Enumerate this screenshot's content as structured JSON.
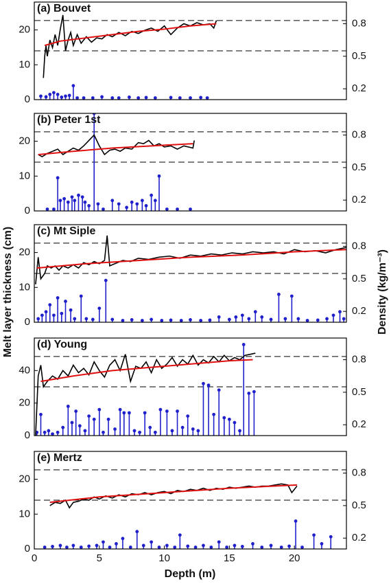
{
  "labels": {
    "y": "Melt layer thickness (cm)",
    "y2": "Density (kg/m⁻³)",
    "x": "Depth (m)"
  },
  "chart_data": [
    {
      "type": "stem-line",
      "title": "(a) Bouvet",
      "xlim": [
        0,
        24
      ],
      "ylim": [
        0,
        28
      ],
      "yticks": [
        0,
        10,
        20
      ],
      "y2lim": [
        0.1,
        1.0
      ],
      "y2ticks": [
        0.2,
        0.5,
        0.8
      ],
      "hlines": [
        0.83,
        0.55
      ],
      "hline_axis": "y2",
      "series": [
        {
          "kind": "stem",
          "color": "#1f1fcc",
          "x": [
            0.5,
            0.9,
            1.2,
            1.5,
            1.8,
            2.1,
            2.4,
            2.7,
            3.0,
            3.3,
            3.8,
            4.5,
            5.2,
            6.0,
            6.5,
            7.3,
            8.0,
            8.6,
            9.3,
            10.5,
            11.2,
            12.0,
            12.8,
            13.3
          ],
          "values": [
            1,
            0.8,
            1.5,
            2,
            1.5,
            0.7,
            1,
            1.2,
            4,
            0.5,
            0.5,
            0.5,
            0.8,
            0.5,
            0.5,
            0.7,
            0.5,
            0.6,
            0.5,
            0.6,
            0.5,
            0.5,
            0.6,
            0.5
          ]
        },
        {
          "kind": "line",
          "axis": "y2",
          "color": "#000000",
          "x": [
            0.7,
            0.8,
            0.9,
            1.0,
            1.2,
            1.4,
            1.6,
            1.8,
            2.0,
            2.2,
            2.4,
            2.6,
            2.8,
            3.0,
            3.3,
            3.6,
            4.0,
            4.4,
            4.8,
            5.2,
            5.6,
            6.0,
            6.5,
            7.0,
            7.5,
            8.0,
            8.5,
            9.0,
            9.5,
            10.0,
            10.5,
            11.0,
            11.5,
            12.0,
            12.5,
            13.0,
            13.5,
            13.8,
            14.0
          ],
          "values": [
            0.3,
            0.5,
            0.6,
            0.5,
            0.65,
            0.58,
            0.7,
            0.6,
            0.75,
            0.88,
            0.55,
            0.65,
            0.72,
            0.6,
            0.7,
            0.62,
            0.68,
            0.63,
            0.67,
            0.66,
            0.7,
            0.68,
            0.72,
            0.69,
            0.73,
            0.71,
            0.74,
            0.76,
            0.73,
            0.78,
            0.7,
            0.76,
            0.8,
            0.78,
            0.81,
            0.79,
            0.8,
            0.76,
            0.83
          ]
        },
        {
          "kind": "line",
          "axis": "y2",
          "color": "#e01010",
          "x": [
            0.8,
            2,
            4,
            6,
            8,
            10,
            12,
            14
          ],
          "values": [
            0.6,
            0.64,
            0.67,
            0.7,
            0.73,
            0.75,
            0.78,
            0.8
          ]
        }
      ]
    },
    {
      "type": "stem-line",
      "title": "(b) Peter 1st",
      "xlim": [
        0,
        24
      ],
      "ylim": [
        0,
        28
      ],
      "yticks": [
        0,
        10,
        20
      ],
      "y2lim": [
        0.1,
        1.0
      ],
      "y2ticks": [
        0.2,
        0.5,
        0.8
      ],
      "hlines": [
        0.83,
        0.55
      ],
      "hline_axis": "y2",
      "series": [
        {
          "kind": "stem",
          "color": "#1f1fcc",
          "x": [
            1.0,
            1.5,
            1.8,
            2.0,
            2.3,
            2.6,
            2.9,
            3.1,
            3.4,
            3.7,
            3.9,
            4.2,
            4.6,
            4.9,
            5.3,
            6.0,
            6.5,
            7.1,
            7.5,
            7.9,
            8.3,
            8.6,
            9.0,
            9.3,
            9.6,
            10.2,
            11.0,
            12.0
          ],
          "values": [
            0.5,
            0.5,
            9.5,
            3,
            3.5,
            2.5,
            4,
            3,
            4.5,
            4,
            2.5,
            1.5,
            28,
            2,
            0.5,
            3,
            2,
            1,
            2.5,
            2,
            3,
            1.5,
            4.5,
            3,
            10,
            0.5,
            0.5,
            0.5
          ]
        },
        {
          "kind": "line",
          "axis": "y2",
          "color": "#000000",
          "x": [
            0.3,
            0.6,
            1.0,
            1.4,
            1.8,
            2.2,
            2.6,
            3.0,
            3.4,
            3.8,
            4.2,
            4.6,
            5.0,
            5.4,
            5.8,
            6.2,
            6.6,
            7.0,
            7.5,
            8.0,
            8.4,
            8.8,
            9.2,
            9.6,
            10.0,
            10.5,
            11.0,
            11.5,
            12.2,
            12.3
          ],
          "values": [
            0.62,
            0.6,
            0.63,
            0.65,
            0.67,
            0.62,
            0.65,
            0.68,
            0.66,
            0.7,
            0.75,
            0.8,
            0.7,
            0.62,
            0.66,
            0.67,
            0.65,
            0.68,
            0.67,
            0.73,
            0.72,
            0.75,
            0.7,
            0.72,
            0.69,
            0.7,
            0.67,
            0.7,
            0.68,
            0.75
          ]
        },
        {
          "kind": "line",
          "axis": "y2",
          "color": "#e01010",
          "x": [
            0.3,
            3,
            6,
            9,
            12.2
          ],
          "values": [
            0.62,
            0.65,
            0.68,
            0.7,
            0.72
          ]
        }
      ]
    },
    {
      "type": "stem-line",
      "title": "(c) Mt Siple",
      "xlim": [
        0,
        24
      ],
      "ylim": [
        0,
        28
      ],
      "yticks": [
        0,
        10,
        20
      ],
      "y2lim": [
        0.1,
        1.0
      ],
      "y2ticks": [
        0.2,
        0.5,
        0.8
      ],
      "hlines": [
        0.83,
        0.55
      ],
      "hline_axis": "y2",
      "series": [
        {
          "kind": "stem",
          "color": "#1f1fcc",
          "x": [
            0.3,
            0.6,
            0.9,
            1.2,
            1.5,
            1.8,
            2.1,
            2.4,
            2.8,
            3.1,
            3.6,
            4.0,
            4.5,
            5.0,
            5.5,
            6.0,
            6.8,
            7.5,
            8.3,
            9.0,
            9.8,
            10.5,
            11.3,
            12.0,
            12.8,
            13.5,
            14.2,
            15.0,
            15.5,
            16.0,
            16.5,
            17.0,
            17.5,
            18.2,
            18.8,
            19.3,
            19.8,
            20.3,
            21.0,
            21.8,
            22.5,
            23.0,
            23.5,
            23.8
          ],
          "values": [
            1,
            2,
            3,
            5,
            2,
            7,
            2.5,
            6,
            3.5,
            1,
            7.5,
            1,
            0.8,
            4,
            12,
            0.8,
            0.5,
            0.7,
            0.5,
            0.8,
            0.5,
            0.6,
            0.5,
            0.7,
            0.5,
            0.6,
            1.5,
            0.8,
            1.5,
            2,
            1,
            3,
            1.5,
            0.8,
            8,
            1,
            7.5,
            1,
            0.5,
            0.6,
            1,
            2,
            3,
            1
          ]
        },
        {
          "kind": "line",
          "axis": "y2",
          "color": "#000000",
          "x": [
            0.1,
            0.3,
            0.5,
            0.8,
            1.0,
            1.3,
            1.6,
            1.9,
            2.2,
            2.6,
            3.0,
            3.4,
            3.8,
            4.2,
            4.6,
            5.0,
            5.4,
            5.6,
            5.8,
            6.2,
            6.8,
            7.4,
            8.0,
            8.8,
            9.6,
            10.4,
            11.2,
            12.0,
            12.8,
            13.6,
            14.4,
            15.2,
            16.0,
            16.8,
            17.6,
            18.4,
            19.2,
            20.0,
            20.8,
            21.6,
            22.4,
            23.2,
            24.0
          ],
          "values": [
            0.45,
            0.7,
            0.5,
            0.55,
            0.62,
            0.6,
            0.62,
            0.58,
            0.62,
            0.6,
            0.63,
            0.6,
            0.65,
            0.63,
            0.66,
            0.64,
            0.67,
            0.9,
            0.62,
            0.64,
            0.67,
            0.66,
            0.69,
            0.68,
            0.7,
            0.71,
            0.69,
            0.72,
            0.71,
            0.73,
            0.72,
            0.74,
            0.73,
            0.75,
            0.74,
            0.75,
            0.73,
            0.77,
            0.75,
            0.76,
            0.74,
            0.77,
            0.79
          ]
        },
        {
          "kind": "line",
          "axis": "y2",
          "color": "#e01010",
          "x": [
            0.2,
            4,
            8,
            12,
            16,
            20,
            24
          ],
          "values": [
            0.6,
            0.64,
            0.67,
            0.7,
            0.72,
            0.75,
            0.77
          ]
        }
      ]
    },
    {
      "type": "stem-line",
      "title": "(d) Young",
      "xlim": [
        0,
        24
      ],
      "ylim": [
        0,
        60
      ],
      "yticks": [
        0,
        20,
        40
      ],
      "y2lim": [
        0.1,
        1.0
      ],
      "y2ticks": [
        0.2,
        0.5,
        0.8
      ],
      "hlines": [
        0.83,
        0.55
      ],
      "hline_axis": "y2",
      "series": [
        {
          "kind": "stem",
          "color": "#1f1fcc",
          "x": [
            0.2,
            0.5,
            0.8,
            1.1,
            1.4,
            1.8,
            2.2,
            2.6,
            2.9,
            3.2,
            3.5,
            3.9,
            4.2,
            4.6,
            5.0,
            5.3,
            5.7,
            6.2,
            6.6,
            6.9,
            7.3,
            7.7,
            8.1,
            8.5,
            8.9,
            9.3,
            9.7,
            10.2,
            10.6,
            11.0,
            11.4,
            11.8,
            12.2,
            12.6,
            13.0,
            13.4,
            13.8,
            14.2,
            14.6,
            15.0,
            15.4,
            15.8,
            16.1,
            16.5,
            16.9
          ],
          "values": [
            2,
            13,
            2,
            3,
            1,
            2,
            5,
            18,
            8,
            15,
            6,
            3,
            12,
            10,
            16,
            2,
            10,
            4,
            16,
            14,
            14,
            3,
            2,
            14,
            5,
            2,
            16,
            15,
            3,
            15,
            5,
            12,
            4,
            3,
            32,
            31,
            13,
            28,
            11,
            10,
            8,
            3,
            56,
            26,
            27
          ]
        },
        {
          "kind": "line",
          "axis": "y2",
          "color": "#000000",
          "x": [
            0.1,
            0.3,
            0.5,
            0.7,
            1.0,
            1.4,
            1.8,
            2.2,
            2.6,
            3.0,
            3.4,
            3.8,
            4.2,
            4.6,
            5.0,
            5.4,
            5.8,
            6.2,
            6.6,
            7.0,
            7.4,
            7.8,
            8.2,
            8.6,
            9.0,
            9.4,
            9.8,
            10.2,
            10.6,
            11.0,
            11.4,
            11.8,
            12.2,
            12.6,
            13.0,
            13.4,
            13.8,
            14.2,
            14.6,
            15.0,
            15.4,
            15.8,
            16.2,
            16.6,
            17.0
          ],
          "values": [
            0.1,
            0.65,
            0.75,
            0.55,
            0.6,
            0.65,
            0.62,
            0.7,
            0.65,
            0.75,
            0.68,
            0.72,
            0.66,
            0.78,
            0.7,
            0.64,
            0.75,
            0.8,
            0.7,
            0.85,
            0.6,
            0.74,
            0.72,
            0.78,
            0.68,
            0.8,
            0.72,
            0.76,
            0.82,
            0.74,
            0.8,
            0.76,
            0.84,
            0.75,
            0.8,
            0.77,
            0.83,
            0.78,
            0.84,
            0.79,
            0.82,
            0.8,
            0.84,
            0.85,
            0.86
          ]
        },
        {
          "kind": "line",
          "axis": "y2",
          "color": "#e01010",
          "x": [
            0.5,
            3,
            6,
            9,
            12,
            15,
            16.8
          ],
          "values": [
            0.6,
            0.65,
            0.7,
            0.73,
            0.76,
            0.79,
            0.8
          ]
        }
      ]
    },
    {
      "type": "stem-line",
      "title": "(e) Mertz",
      "xlim": [
        0,
        24
      ],
      "ylim": [
        0,
        28
      ],
      "yticks": [
        0,
        10,
        20
      ],
      "y2lim": [
        0.1,
        1.0
      ],
      "y2ticks": [
        0.2,
        0.5,
        0.8
      ],
      "xticks": [
        0,
        5,
        10,
        15,
        20
      ],
      "hlines": [
        0.83,
        0.55
      ],
      "hline_axis": "y2",
      "series": [
        {
          "kind": "stem",
          "color": "#1f1fcc",
          "x": [
            0.8,
            1.4,
            2.0,
            2.5,
            3.0,
            3.6,
            4.2,
            4.8,
            5.3,
            5.8,
            6.3,
            6.8,
            7.4,
            7.9,
            8.4,
            9.0,
            9.6,
            10.2,
            10.8,
            11.2,
            11.8,
            12.4,
            13.0,
            13.6,
            14.2,
            14.8,
            15.4,
            16.0,
            16.8,
            17.5,
            18.2,
            19.0,
            19.6,
            20.1,
            20.6,
            21.5,
            22.1,
            22.8
          ],
          "values": [
            0.5,
            0.7,
            1,
            0.5,
            1,
            0.5,
            0.8,
            1,
            2,
            0.5,
            1.5,
            3,
            0.5,
            5,
            1,
            2,
            0.5,
            1,
            0.5,
            4,
            0.8,
            0.5,
            1,
            0.5,
            2,
            0.5,
            1,
            0.7,
            1.5,
            0.5,
            1,
            0.5,
            0.8,
            8,
            0.5,
            4,
            1.5,
            3.5
          ]
        },
        {
          "kind": "line",
          "axis": "y2",
          "color": "#000000",
          "x": [
            1.2,
            1.6,
            2.0,
            2.4,
            2.7,
            3.0,
            3.4,
            3.8,
            4.2,
            4.6,
            5.0,
            5.5,
            6.0,
            6.5,
            7.0,
            7.5,
            8.0,
            8.5,
            9.0,
            9.5,
            10.0,
            10.5,
            11.0,
            11.5,
            12.0,
            12.5,
            13.0,
            13.5,
            14.0,
            14.5,
            15.0,
            15.5,
            16.0,
            16.5,
            17.0,
            17.5,
            18.0,
            18.5,
            19.0,
            19.5,
            19.8,
            20.2
          ],
          "values": [
            0.5,
            0.53,
            0.52,
            0.55,
            0.48,
            0.53,
            0.54,
            0.56,
            0.55,
            0.58,
            0.56,
            0.59,
            0.57,
            0.6,
            0.58,
            0.61,
            0.6,
            0.62,
            0.6,
            0.62,
            0.63,
            0.61,
            0.64,
            0.63,
            0.65,
            0.64,
            0.66,
            0.64,
            0.66,
            0.65,
            0.67,
            0.66,
            0.67,
            0.68,
            0.67,
            0.68,
            0.68,
            0.69,
            0.7,
            0.69,
            0.62,
            0.68
          ]
        },
        {
          "kind": "line",
          "axis": "y2",
          "color": "#e01010",
          "x": [
            1.2,
            5,
            10,
            15,
            20.2
          ],
          "values": [
            0.53,
            0.58,
            0.62,
            0.66,
            0.69
          ]
        }
      ]
    }
  ]
}
